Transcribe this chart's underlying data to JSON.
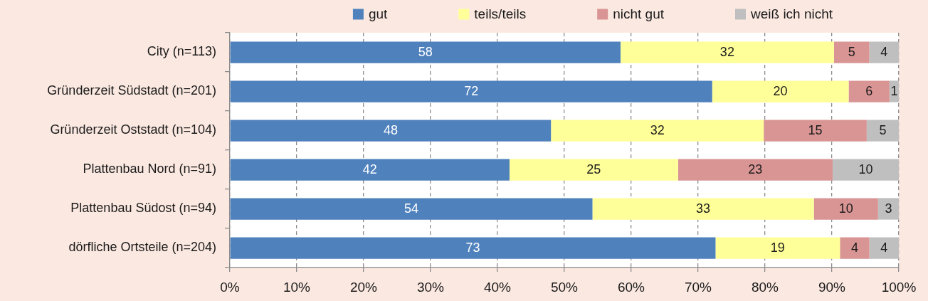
{
  "chart_data": {
    "type": "bar",
    "orientation": "horizontal",
    "stacked": true,
    "categories": [
      "City (n=113)",
      "Gründerzeit Südstadt (n=201)",
      "Gründerzeit Oststadt (n=104)",
      "Plattenbau Nord (n=91)",
      "Plattenbau Südost (n=94)",
      "dörfliche Ortsteile (n=204)"
    ],
    "series": [
      {
        "name": "gut",
        "color": "#4f81bd",
        "values": [
          58.4,
          72.1,
          48.0,
          41.8,
          54.2,
          72.6
        ],
        "value_labels": [
          "58",
          "72",
          "48",
          "42",
          "54",
          "73"
        ]
      },
      {
        "name": "teils/teils",
        "color": "#ffff99",
        "values": [
          31.9,
          20.4,
          31.8,
          25.2,
          33.1,
          18.6
        ],
        "value_labels": [
          "32",
          "20",
          "32",
          "25",
          "33",
          "19"
        ]
      },
      {
        "name": "nicht gut",
        "color": "#d99594",
        "values": [
          5.3,
          6.1,
          15.4,
          23.1,
          9.6,
          4.4
        ],
        "value_labels": [
          "5",
          "6",
          "15",
          "23",
          "10",
          "4"
        ]
      },
      {
        "name": "weiß ich nicht",
        "color": "#bfbfbf",
        "values": [
          4.4,
          1.4,
          4.8,
          9.9,
          3.1,
          4.4
        ],
        "value_labels": [
          "4",
          "1",
          "5",
          "10",
          "3",
          "4"
        ]
      }
    ],
    "xlim": [
      0,
      100
    ],
    "xticks": [
      {
        "value": 0,
        "label": "0%"
      },
      {
        "value": 10,
        "label": "10%"
      },
      {
        "value": 20,
        "label": "20%"
      },
      {
        "value": 30,
        "label": "30%"
      },
      {
        "value": 40,
        "label": "40%"
      },
      {
        "value": 50,
        "label": "50%"
      },
      {
        "value": 60,
        "label": "60%"
      },
      {
        "value": 70,
        "label": "70%"
      },
      {
        "value": 80,
        "label": "80%"
      },
      {
        "value": 90,
        "label": "90%"
      },
      {
        "value": 100,
        "label": "100%"
      }
    ],
    "grid": "x",
    "legend": "top"
  }
}
